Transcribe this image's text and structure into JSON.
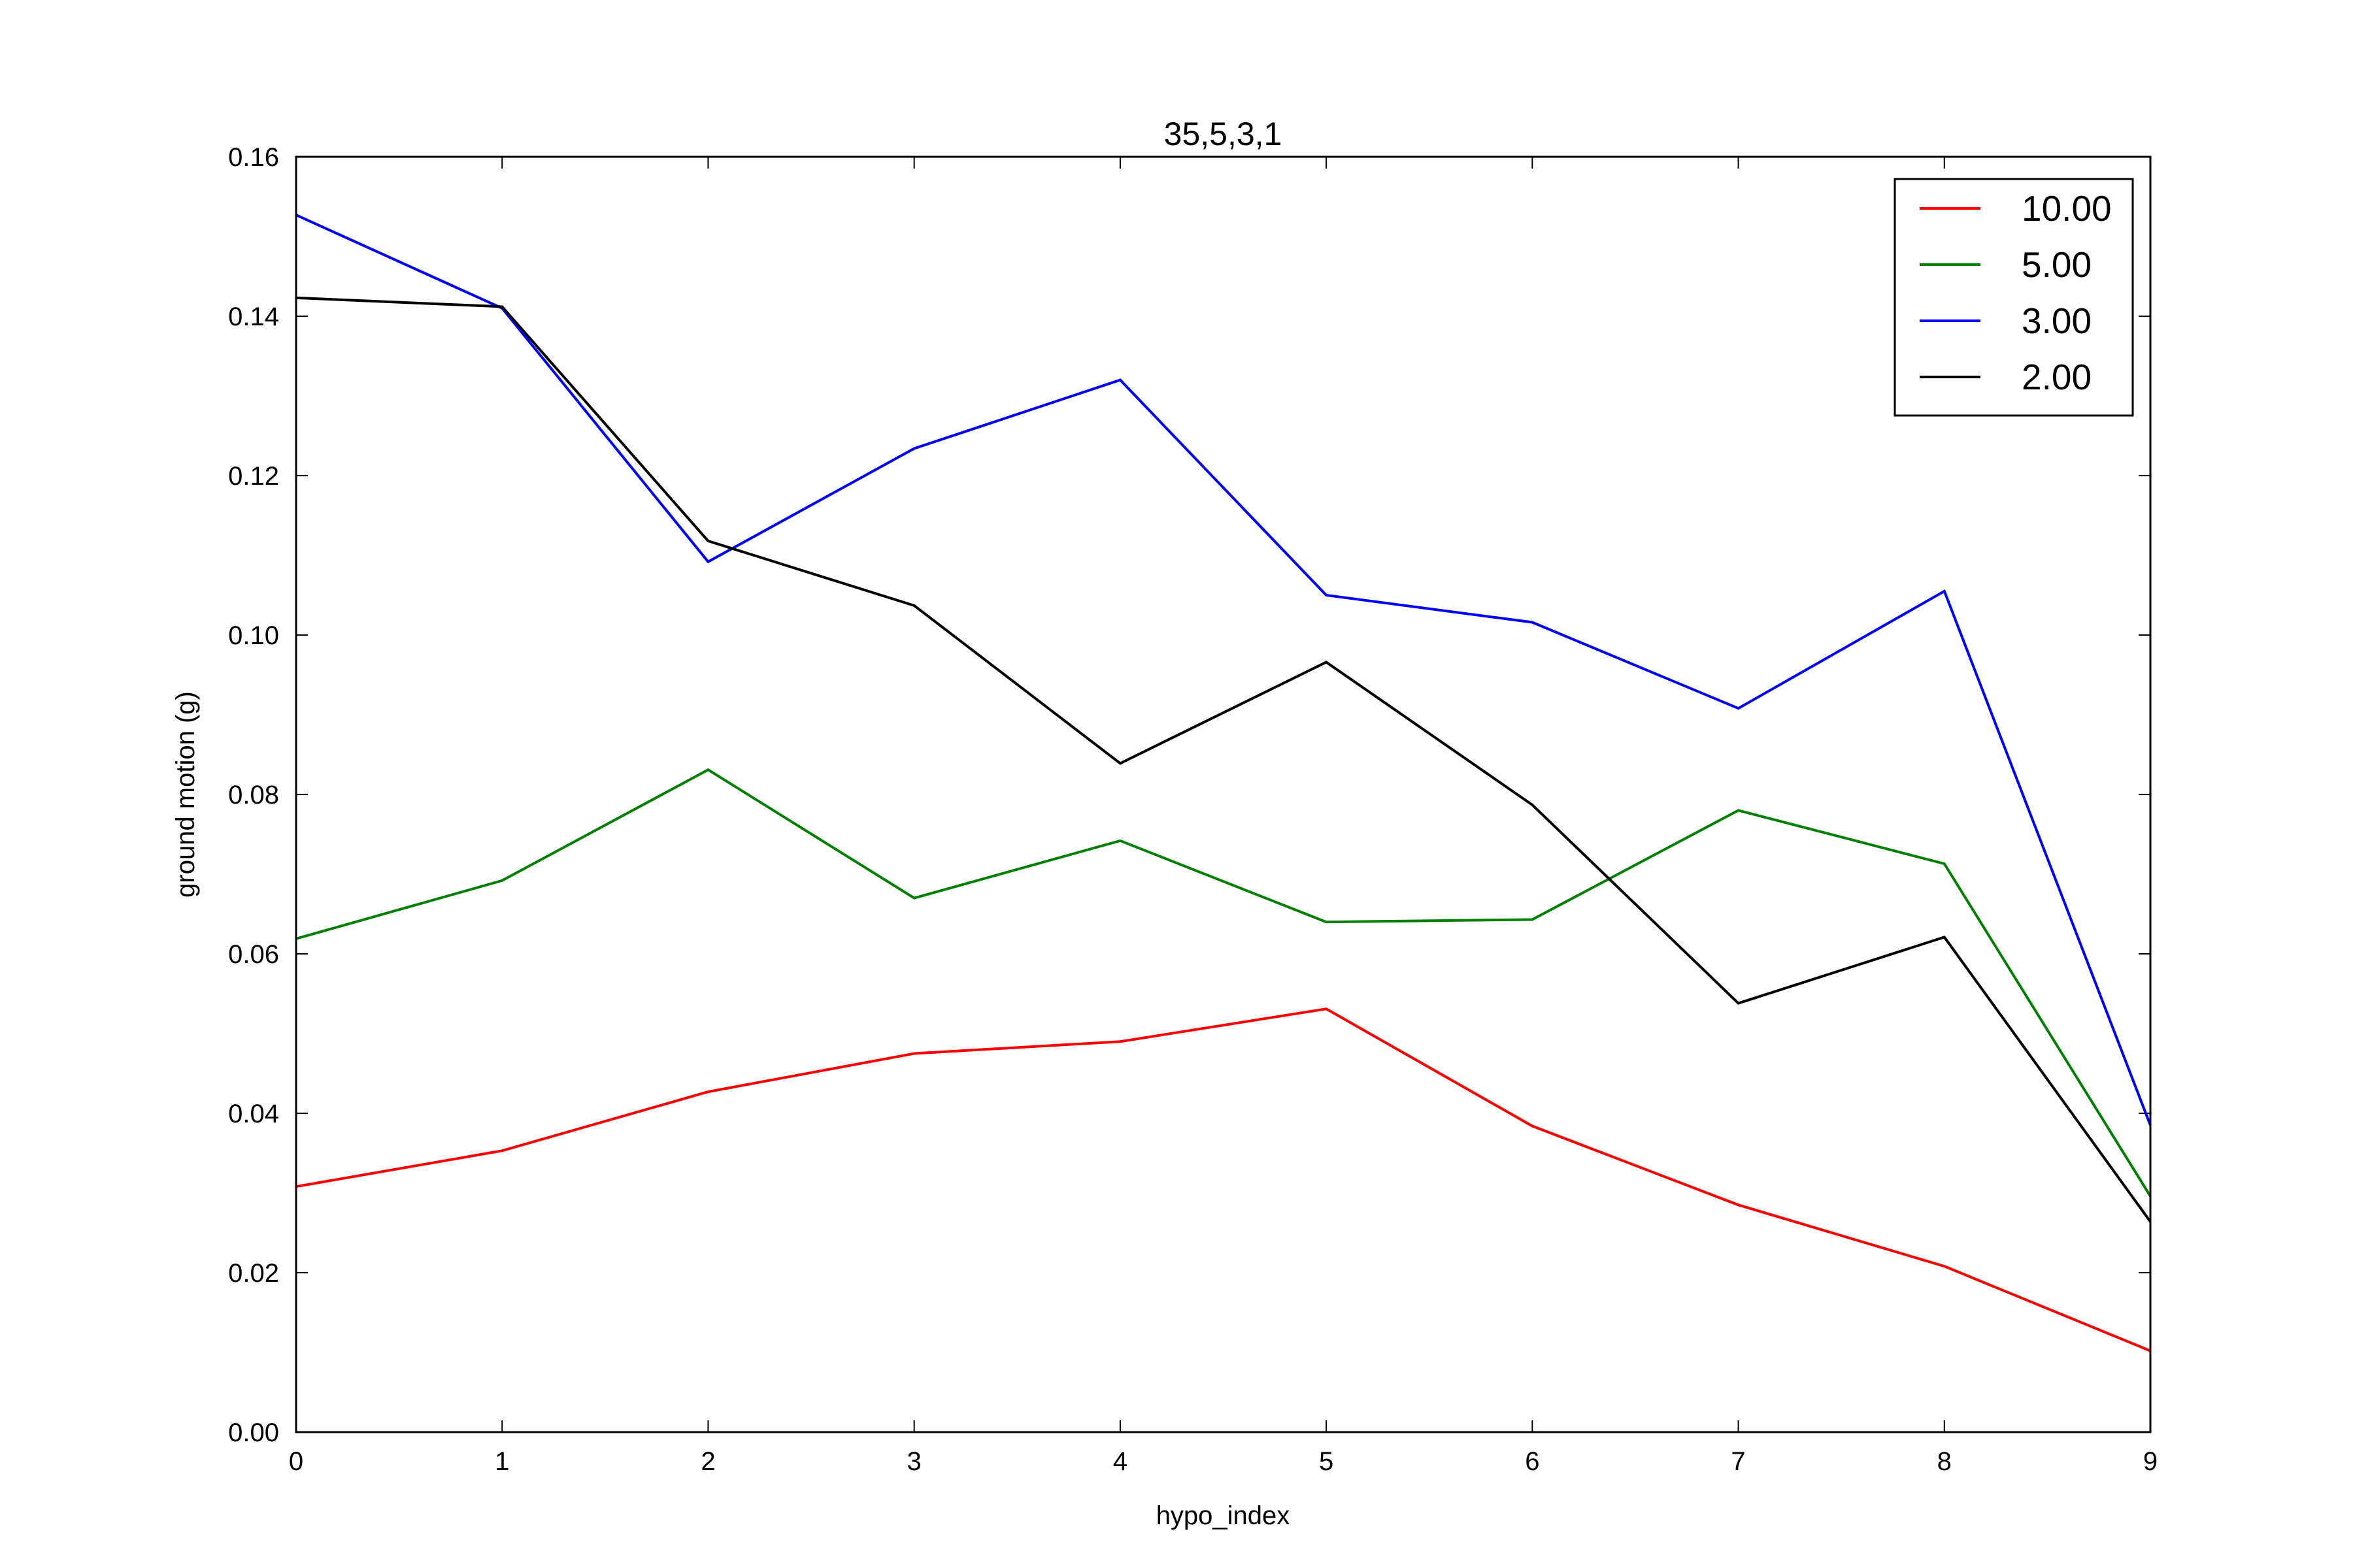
{
  "chart_data": {
    "type": "line",
    "title": "35,5,3,1",
    "xlabel": "hypo_index",
    "ylabel": "ground motion (g)",
    "x": [
      0,
      1,
      2,
      3,
      4,
      5,
      6,
      7,
      8,
      9
    ],
    "xlim": [
      0,
      9
    ],
    "ylim": [
      0,
      0.16
    ],
    "xticks": [
      "0",
      "1",
      "2",
      "3",
      "4",
      "5",
      "6",
      "7",
      "8",
      "9"
    ],
    "yticks": [
      "0.00",
      "0.02",
      "0.04",
      "0.06",
      "0.08",
      "0.10",
      "0.12",
      "0.14",
      "0.16"
    ],
    "grid": false,
    "legend_position": "top-right",
    "series": [
      {
        "name": "10.00",
        "color": "#ff0000",
        "values": [
          0.0308,
          0.0353,
          0.0427,
          0.0475,
          0.049,
          0.0531,
          0.0384,
          0.0285,
          0.0208,
          0.0102
        ]
      },
      {
        "name": "5.00",
        "color": "#008000",
        "values": [
          0.0619,
          0.0692,
          0.0831,
          0.067,
          0.0742,
          0.064,
          0.0643,
          0.078,
          0.0713,
          0.0296
        ]
      },
      {
        "name": "3.00",
        "color": "#0000ff",
        "values": [
          0.1527,
          0.141,
          0.1092,
          0.1234,
          0.132,
          0.105,
          0.1016,
          0.0908,
          0.1055,
          0.0385
        ]
      },
      {
        "name": "2.00",
        "color": "#000000",
        "values": [
          0.1423,
          0.1412,
          0.1118,
          0.1037,
          0.0839,
          0.0966,
          0.0787,
          0.0538,
          0.0621,
          0.0264
        ]
      }
    ]
  }
}
